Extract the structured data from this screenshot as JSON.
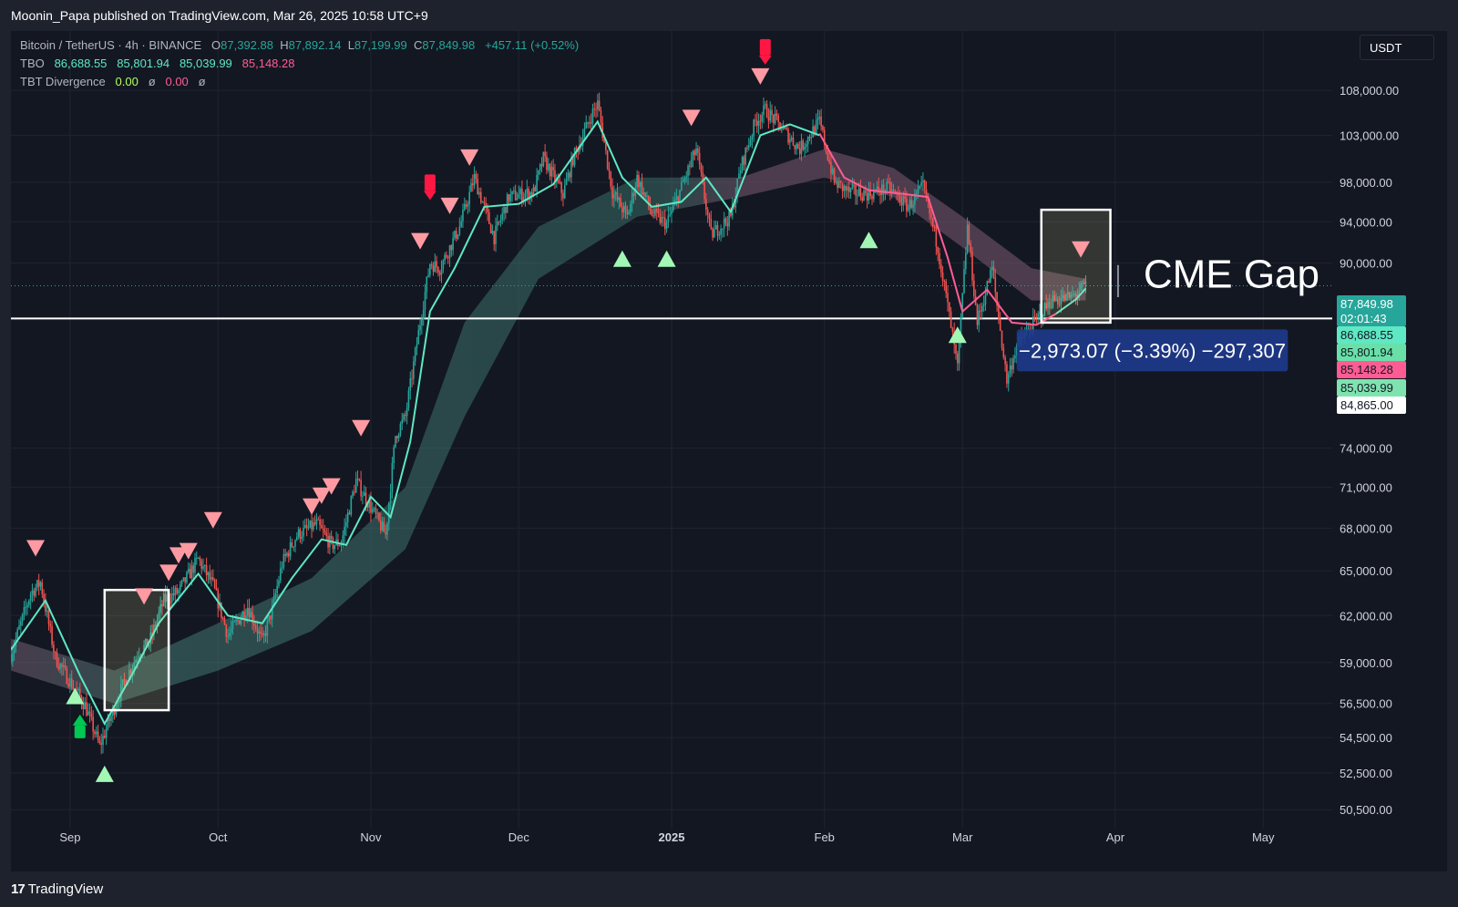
{
  "header": {
    "publisher_line": "Moonin_Papa published on TradingView.com, Mar 26, 2025 10:58 UTC+9"
  },
  "legend": {
    "symbol": "Bitcoin / TetherUS · 4h · BINANCE",
    "o_label": "O",
    "o_value": "87,392.88",
    "h_label": "H",
    "h_value": "87,892.14",
    "l_label": "L",
    "l_value": "87,199.99",
    "c_label": "C",
    "c_value": "87,849.98",
    "change": "+457.11 (+0.52%)",
    "tbo_label": "TBO",
    "tbo_values": [
      "86,688.55",
      "85,801.94",
      "85,039.99",
      "85,148.28"
    ],
    "tbt_label": "TBT Divergence",
    "tbt_values": [
      "0.00",
      "ø",
      "0.00",
      "ø"
    ]
  },
  "currency_button": "USDT",
  "footer": {
    "brand": "TradingView",
    "brand_mark": "17"
  },
  "colors": {
    "background": "#131722",
    "grid": "#1f2430",
    "up": "#26a69a",
    "down": "#ef5350",
    "tbo_fast": "#5ee8c3",
    "tbo_slow": "#ff5c93",
    "sell_marker": "#ff9aa2",
    "buy_marker": "#a3f7b5",
    "strong_sell": "#ff1744",
    "strong_buy": "#00c853",
    "measure_box": "#1e3a8a"
  },
  "chart_data": {
    "type": "candlestick",
    "timeframe": "4h",
    "symbol": "BTCUSDT",
    "y_scale": "log",
    "ylim": [
      49500,
      115000
    ],
    "x_range": [
      "2024-08-20",
      "2025-05-15"
    ],
    "y_ticks": [
      {
        "v": 108000,
        "label": "108,000.00"
      },
      {
        "v": 103000,
        "label": "103,000.00"
      },
      {
        "v": 98000,
        "label": "98,000.00"
      },
      {
        "v": 94000,
        "label": "94,000.00"
      },
      {
        "v": 90000,
        "label": "90,000.00"
      },
      {
        "v": 74000,
        "label": "74,000.00"
      },
      {
        "v": 71000,
        "label": "71,000.00"
      },
      {
        "v": 68000,
        "label": "68,000.00"
      },
      {
        "v": 65000,
        "label": "65,000.00"
      },
      {
        "v": 62000,
        "label": "62,000.00"
      },
      {
        "v": 59000,
        "label": "59,000.00"
      },
      {
        "v": 56500,
        "label": "56,500.00"
      },
      {
        "v": 54500,
        "label": "54,500.00"
      },
      {
        "v": 52500,
        "label": "52,500.00"
      },
      {
        "v": 50500,
        "label": "50,500.00"
      }
    ],
    "x_ticks": [
      {
        "date": "2024-09-01",
        "label": "Sep"
      },
      {
        "date": "2024-10-01",
        "label": "Oct"
      },
      {
        "date": "2024-11-01",
        "label": "Nov"
      },
      {
        "date": "2024-12-01",
        "label": "Dec"
      },
      {
        "date": "2025-01-01",
        "label": "2025"
      },
      {
        "date": "2025-02-01",
        "label": "Feb"
      },
      {
        "date": "2025-03-01",
        "label": "Mar"
      },
      {
        "date": "2025-04-01",
        "label": "Apr"
      },
      {
        "date": "2025-05-01",
        "label": "May"
      }
    ],
    "price_path": [
      [
        "2024-08-20",
        59500
      ],
      [
        "2024-08-24",
        63500
      ],
      [
        "2024-08-26",
        64200
      ],
      [
        "2024-08-29",
        59300
      ],
      [
        "2024-09-01",
        57800
      ],
      [
        "2024-09-04",
        56400
      ],
      [
        "2024-09-07",
        54000
      ],
      [
        "2024-09-09",
        55500
      ],
      [
        "2024-09-12",
        57800
      ],
      [
        "2024-09-15",
        59700
      ],
      [
        "2024-09-17",
        60200
      ],
      [
        "2024-09-20",
        63000
      ],
      [
        "2024-09-23",
        63600
      ],
      [
        "2024-09-27",
        65800
      ],
      [
        "2024-09-30",
        64000
      ],
      [
        "2024-10-03",
        60700
      ],
      [
        "2024-10-07",
        62600
      ],
      [
        "2024-10-10",
        60300
      ],
      [
        "2024-10-12",
        62400
      ],
      [
        "2024-10-14",
        65500
      ],
      [
        "2024-10-17",
        67500
      ],
      [
        "2024-10-21",
        68300
      ],
      [
        "2024-10-24",
        66800
      ],
      [
        "2024-10-26",
        67000
      ],
      [
        "2024-10-29",
        71500
      ],
      [
        "2024-11-01",
        69500
      ],
      [
        "2024-11-04",
        67500
      ],
      [
        "2024-11-06",
        75000
      ],
      [
        "2024-11-08",
        76500
      ],
      [
        "2024-11-11",
        84500
      ],
      [
        "2024-11-13",
        90000
      ],
      [
        "2024-11-15",
        89500
      ],
      [
        "2024-11-19",
        93500
      ],
      [
        "2024-11-22",
        98500
      ],
      [
        "2024-11-26",
        92500
      ],
      [
        "2024-11-29",
        96500
      ],
      [
        "2024-12-04",
        97000
      ],
      [
        "2024-12-06",
        100500
      ],
      [
        "2024-12-10",
        96800
      ],
      [
        "2024-12-12",
        100500
      ],
      [
        "2024-12-16",
        105500
      ],
      [
        "2024-12-17",
        106500
      ],
      [
        "2024-12-20",
        97000
      ],
      [
        "2024-12-23",
        94500
      ],
      [
        "2024-12-25",
        98500
      ],
      [
        "2024-12-28",
        94800
      ],
      [
        "2024-12-31",
        93800
      ],
      [
        "2025-01-03",
        97500
      ],
      [
        "2025-01-06",
        101500
      ],
      [
        "2025-01-09",
        92700
      ],
      [
        "2025-01-13",
        94500
      ],
      [
        "2025-01-15",
        99500
      ],
      [
        "2025-01-18",
        104500
      ],
      [
        "2025-01-20",
        105800
      ],
      [
        "2025-01-23",
        104000
      ],
      [
        "2025-01-27",
        101500
      ],
      [
        "2025-01-31",
        104500
      ],
      [
        "2025-02-03",
        98000
      ],
      [
        "2025-02-06",
        97000
      ],
      [
        "2025-02-10",
        96800
      ],
      [
        "2025-02-14",
        97400
      ],
      [
        "2025-02-18",
        95500
      ],
      [
        "2025-02-21",
        97500
      ],
      [
        "2025-02-24",
        91500
      ],
      [
        "2025-02-26",
        86000
      ],
      [
        "2025-02-28",
        80500
      ],
      [
        "2025-03-02",
        93500
      ],
      [
        "2025-03-04",
        84500
      ],
      [
        "2025-03-07",
        89500
      ],
      [
        "2025-03-10",
        79500
      ],
      [
        "2025-03-12",
        82500
      ],
      [
        "2025-03-15",
        84200
      ],
      [
        "2025-03-19",
        86500
      ],
      [
        "2025-03-23",
        86800
      ],
      [
        "2025-03-26",
        87850
      ]
    ],
    "tbo_fast_path": [
      [
        "2024-08-20",
        59800
      ],
      [
        "2024-08-27",
        63000
      ],
      [
        "2024-09-03",
        58200
      ],
      [
        "2024-09-08",
        55300
      ],
      [
        "2024-09-14",
        58500
      ],
      [
        "2024-09-19",
        61500
      ],
      [
        "2024-09-27",
        64800
      ],
      [
        "2024-10-03",
        62000
      ],
      [
        "2024-10-10",
        61500
      ],
      [
        "2024-10-16",
        64500
      ],
      [
        "2024-10-22",
        67200
      ],
      [
        "2024-10-27",
        66800
      ],
      [
        "2024-11-01",
        70300
      ],
      [
        "2024-11-05",
        68800
      ],
      [
        "2024-11-09",
        74500
      ],
      [
        "2024-11-13",
        85500
      ],
      [
        "2024-11-18",
        89500
      ],
      [
        "2024-11-24",
        95500
      ],
      [
        "2024-12-01",
        95800
      ],
      [
        "2024-12-08",
        97800
      ],
      [
        "2024-12-17",
        104500
      ],
      [
        "2024-12-22",
        98500
      ],
      [
        "2024-12-28",
        95500
      ],
      [
        "2025-01-03",
        96000
      ],
      [
        "2025-01-08",
        98500
      ],
      [
        "2025-01-13",
        95000
      ],
      [
        "2025-01-19",
        103000
      ],
      [
        "2025-01-25",
        104200
      ],
      [
        "2025-01-31",
        103000
      ]
    ],
    "tbo_slow_path": [
      [
        "2025-01-31",
        103200
      ],
      [
        "2025-02-05",
        98500
      ],
      [
        "2025-02-10",
        97200
      ],
      [
        "2025-02-17",
        96800
      ],
      [
        "2025-02-22",
        96500
      ],
      [
        "2025-02-26",
        90500
      ],
      [
        "2025-03-01",
        85500
      ],
      [
        "2025-03-06",
        87500
      ],
      [
        "2025-03-11",
        84500
      ],
      [
        "2025-03-16",
        84300
      ],
      [
        "2025-03-20",
        85300
      ]
    ],
    "tbo_fast_tail": [
      [
        "2025-03-20",
        85300
      ],
      [
        "2025-03-24",
        86600
      ],
      [
        "2025-03-26",
        87600
      ]
    ],
    "cloud_upper": [
      [
        "2024-08-20",
        60500
      ],
      [
        "2024-09-10",
        58500
      ],
      [
        "2024-10-01",
        61500
      ],
      [
        "2024-10-20",
        64500
      ],
      [
        "2024-11-08",
        71000
      ],
      [
        "2024-11-20",
        84500
      ],
      [
        "2024-12-05",
        93500
      ],
      [
        "2024-12-25",
        98500
      ],
      [
        "2025-01-15",
        98500
      ],
      [
        "2025-02-01",
        101500
      ],
      [
        "2025-02-15",
        99500
      ],
      [
        "2025-03-01",
        94500
      ],
      [
        "2025-03-15",
        89500
      ],
      [
        "2025-03-26",
        88500
      ]
    ],
    "cloud_lower": [
      [
        "2024-08-20",
        58500
      ],
      [
        "2024-09-10",
        56500
      ],
      [
        "2024-10-01",
        58500
      ],
      [
        "2024-10-20",
        61000
      ],
      [
        "2024-11-08",
        66500
      ],
      [
        "2024-11-20",
        76500
      ],
      [
        "2024-12-05",
        88500
      ],
      [
        "2024-12-25",
        94500
      ],
      [
        "2025-01-15",
        96500
      ],
      [
        "2025-02-01",
        98500
      ],
      [
        "2025-02-15",
        96500
      ],
      [
        "2025-03-01",
        91500
      ],
      [
        "2025-03-15",
        86500
      ],
      [
        "2025-03-26",
        86500
      ]
    ],
    "sell_markers": [
      [
        "2024-08-25",
        66500
      ],
      [
        "2024-09-16",
        63200
      ],
      [
        "2024-09-21",
        64800
      ],
      [
        "2024-09-23",
        66000
      ],
      [
        "2024-09-25",
        66300
      ],
      [
        "2024-09-30",
        68500
      ],
      [
        "2024-10-20",
        69500
      ],
      [
        "2024-10-22",
        70300
      ],
      [
        "2024-10-24",
        71000
      ],
      [
        "2024-10-30",
        75500
      ],
      [
        "2024-11-11",
        92000
      ],
      [
        "2024-11-17",
        95500
      ],
      [
        "2024-11-21",
        100500
      ],
      [
        "2025-01-05",
        104800
      ],
      [
        "2025-01-19",
        109500
      ],
      [
        "2025-03-25",
        91200
      ]
    ],
    "buy_markers": [
      [
        "2024-09-02",
        57000
      ],
      [
        "2024-09-08",
        52500
      ],
      [
        "2024-12-22",
        90500
      ],
      [
        "2024-12-31",
        90500
      ],
      [
        "2025-02-10",
        92300
      ],
      [
        "2025-02-28",
        83500
      ]
    ],
    "strong_sell_markers": [
      [
        "2024-11-13",
        97500
      ],
      [
        "2025-01-20",
        112500
      ]
    ],
    "strong_buy_markers": [
      [
        "2024-09-03",
        55200
      ]
    ],
    "cme_gap_line": {
      "value": 84865,
      "label": "CME Gap"
    },
    "highlight_boxes": [
      {
        "from": "2024-09-08",
        "to": "2024-09-21",
        "low": 56100,
        "high": 63700
      },
      {
        "from": "2025-03-17",
        "to": "2025-03-31",
        "low": 84500,
        "high": 95200
      }
    ],
    "measure": {
      "text": "−2,973.07 (−3.39%) −297,307",
      "from": "2025-03-12",
      "to": "2025-05-06",
      "y_from": 84865,
      "y_to": 87850
    },
    "price_tags": [
      {
        "label": "87,849.98",
        "sub": "02:01:43",
        "v": 87849.98,
        "bg": "#26a69a",
        "fg": "#ffffff"
      },
      {
        "label": "86,688.55",
        "v": 86688.55,
        "bg": "#5ee8c3",
        "fg": "#131722"
      },
      {
        "label": "85,801.94",
        "v": 85801.94,
        "bg": "#69e0a8",
        "fg": "#131722"
      },
      {
        "label": "85,148.28",
        "v": 85148.28,
        "bg": "#ff5c93",
        "fg": "#131722"
      },
      {
        "label": "85,039.99",
        "v": 85039.99,
        "bg": "#7fe3b0",
        "fg": "#131722"
      },
      {
        "label": "84,865.00",
        "v": 84865,
        "bg": "#ffffff",
        "fg": "#131722"
      }
    ]
  }
}
